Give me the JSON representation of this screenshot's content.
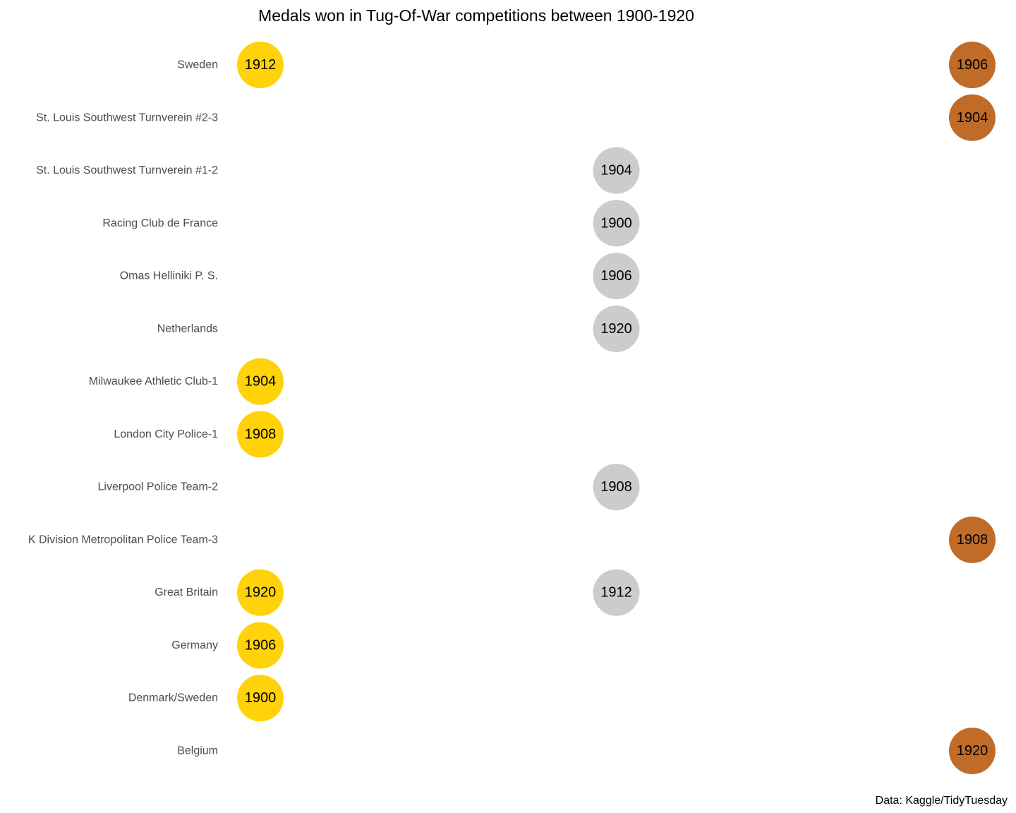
{
  "chart_data": {
    "type": "scatter",
    "title": "Medals won in Tug-Of-War competitions between 1900-1920",
    "caption": "Data: Kaggle/TidyTuesday",
    "x_categories": [
      "Gold",
      "Silver",
      "Bronze"
    ],
    "y_categories": [
      "Sweden",
      "St. Louis Southwest Turnverein #2-3",
      "St. Louis Southwest Turnverein #1-2",
      "Racing Club de France",
      "Omas Helliniki P. S.",
      "Netherlands",
      "Milwaukee Athletic Club-1",
      "London City Police-1",
      "Liverpool Police Team-2",
      "K Division Metropolitan Police Team-3",
      "Great Britain",
      "Germany",
      "Denmark/Sweden",
      "Belgium"
    ],
    "colors": {
      "Gold": "#FFD20A",
      "Silver": "#CCCCCC",
      "Bronze": "#C06B27"
    },
    "points": [
      {
        "team": "Sweden",
        "medal": "Gold",
        "year": "1912"
      },
      {
        "team": "Sweden",
        "medal": "Bronze",
        "year": "1906"
      },
      {
        "team": "St. Louis Southwest Turnverein #2-3",
        "medal": "Bronze",
        "year": "1904"
      },
      {
        "team": "St. Louis Southwest Turnverein #1-2",
        "medal": "Silver",
        "year": "1904"
      },
      {
        "team": "Racing Club de France",
        "medal": "Silver",
        "year": "1900"
      },
      {
        "team": "Omas Helliniki P. S.",
        "medal": "Silver",
        "year": "1906"
      },
      {
        "team": "Netherlands",
        "medal": "Silver",
        "year": "1920"
      },
      {
        "team": "Milwaukee Athletic Club-1",
        "medal": "Gold",
        "year": "1904"
      },
      {
        "team": "London City Police-1",
        "medal": "Gold",
        "year": "1908"
      },
      {
        "team": "Liverpool Police Team-2",
        "medal": "Silver",
        "year": "1908"
      },
      {
        "team": "K Division Metropolitan Police Team-3",
        "medal": "Bronze",
        "year": "1908"
      },
      {
        "team": "Great Britain",
        "medal": "Gold",
        "year": "1920"
      },
      {
        "team": "Great Britain",
        "medal": "Silver",
        "year": "1912"
      },
      {
        "team": "Germany",
        "medal": "Gold",
        "year": "1906"
      },
      {
        "team": "Denmark/Sweden",
        "medal": "Gold",
        "year": "1900"
      },
      {
        "team": "Belgium",
        "medal": "Bronze",
        "year": "1920"
      }
    ],
    "xlabel": "",
    "ylabel": "",
    "grid": false,
    "legend": "none"
  }
}
